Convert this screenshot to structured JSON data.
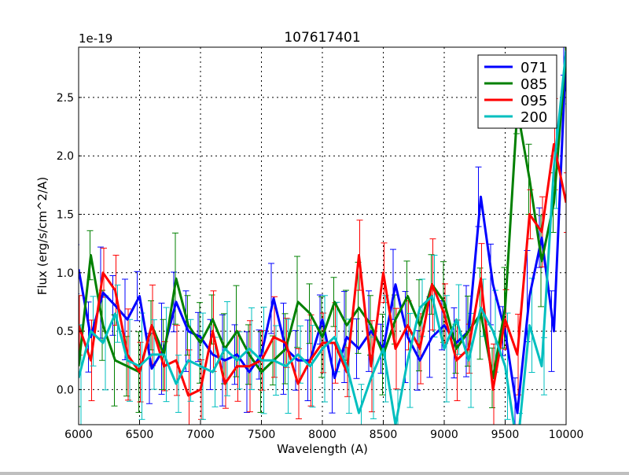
{
  "chart_data": {
    "type": "line",
    "title": "107617401",
    "xlabel": "Wavelength (A)",
    "ylabel": "Flux (erg/s/cm^2/A)",
    "y_offset_text": "1e-19",
    "xlim": [
      6000,
      10000
    ],
    "ylim": [
      -0.3,
      2.93
    ],
    "xticks": [
      6000,
      6500,
      7000,
      7500,
      8000,
      8500,
      9000,
      9500,
      10000
    ],
    "xtick_labels": [
      "6000",
      "6500",
      "7000",
      "7500",
      "8000",
      "8500",
      "9000",
      "9500",
      "10000"
    ],
    "yticks": [
      0.0,
      0.5,
      1.0,
      1.5,
      2.0,
      2.5
    ],
    "ytick_labels": [
      "0.0",
      "0.5",
      "1.0",
      "1.5",
      "2.0",
      "2.5"
    ],
    "grid": true,
    "legend_position": "top-right",
    "x": [
      6000,
      6100,
      6200,
      6300,
      6400,
      6500,
      6600,
      6700,
      6800,
      6900,
      7000,
      7100,
      7200,
      7300,
      7400,
      7500,
      7600,
      7700,
      7800,
      7900,
      8000,
      8100,
      8200,
      8300,
      8400,
      8500,
      8600,
      8700,
      8800,
      8900,
      9000,
      9100,
      9200,
      9300,
      9400,
      9500,
      9600,
      9700,
      9800,
      9900,
      10000
    ],
    "series": [
      {
        "name": "071",
        "color": "#0000ff",
        "yerr": 0.3,
        "values": [
          1.03,
          0.45,
          0.83,
          0.72,
          0.6,
          0.8,
          0.18,
          0.35,
          0.75,
          0.5,
          0.45,
          0.3,
          0.25,
          0.3,
          0.15,
          0.3,
          0.78,
          0.35,
          0.25,
          0.25,
          0.6,
          0.1,
          0.45,
          0.35,
          0.5,
          0.35,
          0.9,
          0.45,
          0.25,
          0.45,
          0.55,
          0.4,
          0.5,
          1.65,
          0.9,
          0.5,
          -0.2,
          0.8,
          1.3,
          0.5,
          2.9
        ]
      },
      {
        "name": "085",
        "color": "#008000",
        "yerr": 0.3,
        "values": [
          0.2,
          1.15,
          0.55,
          0.25,
          0.2,
          0.15,
          0.55,
          0.3,
          0.95,
          0.55,
          0.4,
          0.6,
          0.35,
          0.5,
          0.3,
          0.15,
          0.25,
          0.35,
          0.75,
          0.65,
          0.45,
          0.75,
          0.55,
          0.7,
          0.55,
          0.3,
          0.6,
          0.8,
          0.55,
          0.9,
          0.75,
          0.35,
          0.5,
          0.65,
          0.1,
          0.7,
          2.4,
          1.8,
          1.1,
          1.6,
          2.9
        ]
      },
      {
        "name": "095",
        "color": "#ff0000",
        "yerr": 0.3,
        "values": [
          0.55,
          0.25,
          1.0,
          0.85,
          0.3,
          0.15,
          0.55,
          0.2,
          0.25,
          -0.05,
          0.0,
          0.5,
          0.05,
          0.2,
          0.2,
          0.25,
          0.45,
          0.4,
          0.05,
          0.25,
          0.4,
          0.4,
          0.15,
          1.15,
          0.2,
          1.0,
          0.35,
          0.55,
          0.35,
          0.9,
          0.65,
          0.25,
          0.35,
          0.95,
          0.0,
          0.6,
          0.3,
          1.5,
          1.35,
          2.1,
          1.6
        ]
      },
      {
        "name": "200",
        "color": "#00bfbf",
        "yerr": 0.35,
        "values": [
          0.1,
          0.5,
          0.4,
          0.65,
          0.25,
          0.2,
          0.3,
          0.3,
          0.05,
          0.25,
          0.2,
          0.15,
          0.35,
          0.25,
          0.35,
          0.25,
          0.25,
          0.2,
          0.3,
          0.2,
          0.35,
          0.45,
          0.2,
          -0.2,
          0.1,
          0.35,
          -0.3,
          0.25,
          0.7,
          0.8,
          0.35,
          0.6,
          0.25,
          0.7,
          0.5,
          0.2,
          -0.5,
          0.55,
          0.2,
          1.9,
          2.9
        ]
      }
    ]
  }
}
